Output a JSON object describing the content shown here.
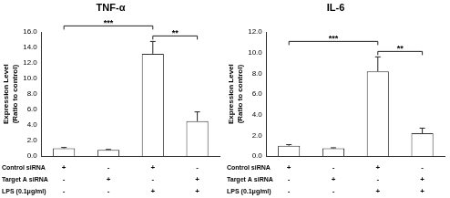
{
  "chart_data": [
    {
      "type": "bar",
      "title": "TNF-α",
      "y_label": [
        "Expression Level",
        "(Ratio to control)"
      ],
      "categories": [
        null,
        null,
        null,
        null
      ],
      "values": [
        1.0,
        0.8,
        13.2,
        4.5
      ],
      "errors": [
        0.1,
        0.05,
        1.6,
        1.2
      ],
      "color": "#ffffff",
      "ylim": [
        0,
        16
      ],
      "yticks": [
        {
          "value": 0,
          "label": "0.0"
        },
        {
          "value": 2,
          "label": "2.0"
        },
        {
          "value": 4,
          "label": "4.0"
        },
        {
          "value": 6,
          "label": "6.0"
        },
        {
          "value": 8,
          "label": "8.0"
        },
        {
          "value": 10,
          "label": "10.0"
        },
        {
          "value": 12,
          "label": "12.0"
        },
        {
          "value": 14,
          "label": "14.0"
        },
        {
          "value": 16,
          "label": "16.0"
        }
      ],
      "grid": false,
      "tick_labels": "y",
      "comparisons": [
        {
          "from": 0,
          "to": 2,
          "label": "***"
        },
        {
          "from": 2,
          "to": 3,
          "label": "**"
        }
      ],
      "conditions": [
        {
          "label": "Control siRNA",
          "marks": [
            "+",
            "-",
            "+",
            "-"
          ]
        },
        {
          "label": "Target A siRNA",
          "marks": [
            "-",
            "+",
            "-",
            "+"
          ]
        },
        {
          "label": "LPS (0.1μg/ml)",
          "marks": [
            "-",
            "-",
            "+",
            "+"
          ]
        }
      ]
    },
    {
      "type": "bar",
      "title": "IL-6",
      "y_label": [
        "Expression Level",
        "(Ratio to control)"
      ],
      "categories": [
        null,
        null,
        null,
        null
      ],
      "values": [
        1.0,
        0.75,
        8.2,
        2.2
      ],
      "errors": [
        0.1,
        0.05,
        1.4,
        0.5
      ],
      "color": "#ffffff",
      "ylim": [
        0,
        12
      ],
      "yticks": [
        {
          "value": 0,
          "label": "0.0"
        },
        {
          "value": 2,
          "label": "2.0"
        },
        {
          "value": 4,
          "label": "4.0"
        },
        {
          "value": 6,
          "label": "6.0"
        },
        {
          "value": 8,
          "label": "8.0"
        },
        {
          "value": 10,
          "label": "10.0"
        },
        {
          "value": 12,
          "label": "12.0"
        }
      ],
      "grid": false,
      "tick_labels": "y",
      "comparisons": [
        {
          "from": 0,
          "to": 2,
          "label": "***"
        },
        {
          "from": 2,
          "to": 3,
          "label": "**"
        }
      ],
      "conditions": [
        {
          "label": "Control siRNA",
          "marks": [
            "+",
            "-",
            "+",
            "-"
          ]
        },
        {
          "label": "Target A siRNA",
          "marks": [
            "-",
            "+",
            "-",
            "+"
          ]
        },
        {
          "label": "LPS (0.1μg/ml)",
          "marks": [
            "-",
            "-",
            "+",
            "+"
          ]
        }
      ]
    }
  ]
}
